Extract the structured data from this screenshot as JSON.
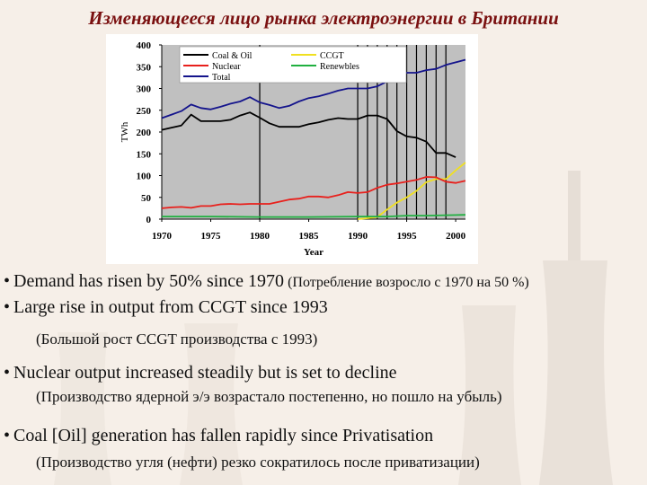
{
  "slide": {
    "title": "Изменяющееся лицо рынка электроэнергии в Британии",
    "bullets": [
      {
        "marker": "•",
        "en": "Demand has risen by 50% since 1970",
        "ru": "(Потребление возросло с 1970 на 50 %)"
      },
      {
        "marker": "•",
        "en": "Large rise in output from CCGT since 1993",
        "ru": "(Большой рост CCGT производства с 1993)"
      },
      {
        "marker": "•",
        "en": "Nuclear output increased steadily but is set to decline",
        "ru": "(Производство ядерной э/э возрастало постепенно, но пошло на убыль)"
      },
      {
        "marker": "•",
        "en": "Coal [Oil] generation has fallen rapidly since Privatisation",
        "ru": "(Производство угля (нефти) резко сократилось после приватизации)"
      }
    ]
  },
  "chart_data": {
    "type": "line",
    "title": "",
    "xlabel": "Year",
    "ylabel": "TWh",
    "xlim": [
      1970,
      2001
    ],
    "ylim": [
      0,
      400
    ],
    "xticks": [
      1970,
      1975,
      1980,
      1985,
      1990,
      1995,
      2000
    ],
    "yticks": [
      0,
      50,
      100,
      150,
      200,
      250,
      300,
      350,
      400
    ],
    "vlines": [
      1980,
      1990,
      1991,
      1992,
      1993,
      1994,
      1995,
      1996,
      1997,
      1998,
      1999
    ],
    "legend_position": "top",
    "colors": {
      "plot_bg": "#c0c0c0",
      "panel_bg": "#ffffff",
      "coal": "#000000",
      "nuclear": "#e8201c",
      "ccgt": "#f0e020",
      "renewables": "#20b040",
      "total": "#14148c"
    },
    "series": [
      {
        "name": "Coal & Oil",
        "color": "#000000",
        "x": [
          1970,
          1971,
          1972,
          1973,
          1974,
          1975,
          1976,
          1977,
          1978,
          1979,
          1980,
          1981,
          1982,
          1983,
          1984,
          1985,
          1986,
          1987,
          1988,
          1989,
          1990,
          1991,
          1992,
          1993,
          1994,
          1995,
          1996,
          1997,
          1998,
          1999,
          2000
        ],
        "y": [
          205,
          210,
          215,
          240,
          225,
          225,
          225,
          228,
          238,
          245,
          233,
          220,
          212,
          212,
          212,
          218,
          222,
          228,
          232,
          230,
          230,
          238,
          238,
          230,
          202,
          190,
          187,
          178,
          152,
          152,
          142
        ]
      },
      {
        "name": "CCGT",
        "color": "#f0e020",
        "x": [
          1990,
          1991,
          1992,
          1993,
          1994,
          1995,
          1996,
          1997,
          1998,
          1999,
          2000,
          2001
        ],
        "y": [
          0,
          2,
          5,
          22,
          38,
          50,
          65,
          85,
          92,
          92,
          112,
          130
        ]
      },
      {
        "name": "Nuclear",
        "color": "#e8201c",
        "x": [
          1970,
          1971,
          1972,
          1973,
          1974,
          1975,
          1976,
          1977,
          1978,
          1979,
          1980,
          1981,
          1982,
          1983,
          1984,
          1985,
          1986,
          1987,
          1988,
          1989,
          1990,
          1991,
          1992,
          1993,
          1994,
          1995,
          1996,
          1997,
          1998,
          1999,
          2000,
          2001
        ],
        "y": [
          25,
          27,
          28,
          26,
          30,
          30,
          34,
          35,
          34,
          35,
          35,
          35,
          40,
          45,
          47,
          52,
          52,
          50,
          55,
          62,
          60,
          62,
          72,
          79,
          82,
          86,
          90,
          97,
          96,
          86,
          83,
          88
        ]
      },
      {
        "name": "Renewbles",
        "color": "#20b040",
        "x": [
          1970,
          1975,
          1980,
          1985,
          1990,
          1993,
          1995,
          1997,
          1999,
          2001
        ],
        "y": [
          6,
          6,
          5,
          5,
          6,
          6,
          8,
          8,
          9,
          10
        ]
      },
      {
        "name": "Total",
        "color": "#14148c",
        "x": [
          1970,
          1971,
          1972,
          1973,
          1974,
          1975,
          1976,
          1977,
          1978,
          1979,
          1980,
          1981,
          1982,
          1983,
          1984,
          1985,
          1986,
          1987,
          1988,
          1989,
          1990,
          1991,
          1992,
          1993,
          1994,
          1995,
          1996,
          1997,
          1998,
          1999,
          2000,
          2001
        ],
        "y": [
          232,
          240,
          248,
          263,
          255,
          252,
          258,
          265,
          270,
          280,
          268,
          262,
          255,
          260,
          270,
          278,
          282,
          288,
          295,
          300,
          300,
          300,
          305,
          316,
          322,
          336,
          336,
          342,
          345,
          354,
          360,
          366
        ]
      }
    ]
  }
}
